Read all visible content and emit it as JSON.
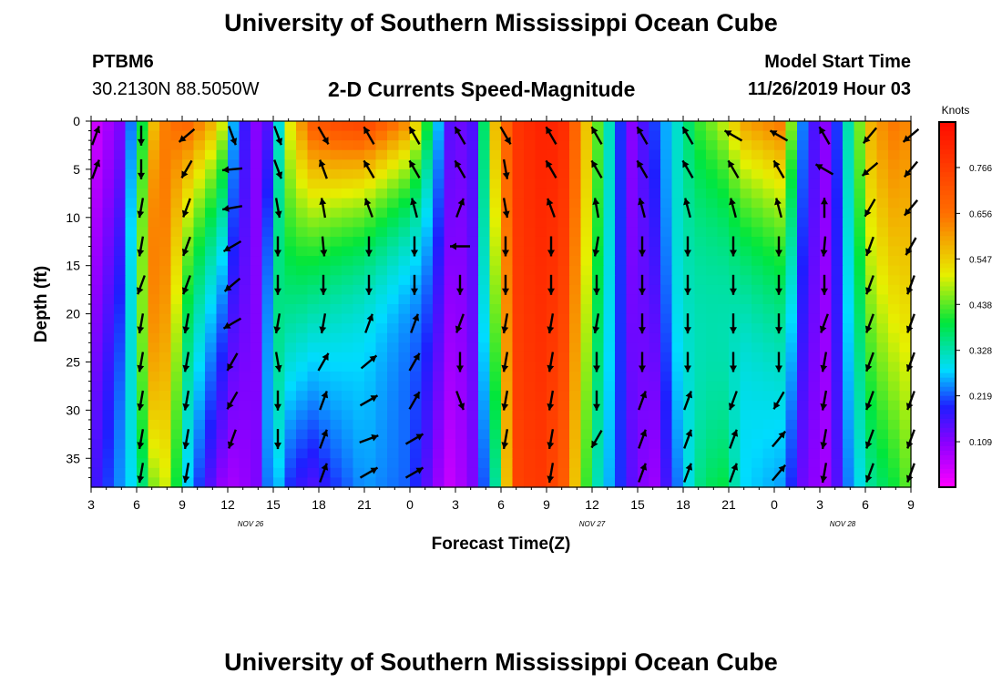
{
  "header": {
    "title_top": "University of Southern Mississippi Ocean Cube",
    "title_bottom": "University of Southern Mississippi Ocean Cube",
    "station_id": "PTBM6",
    "station_coords": "30.2130N 88.5050W",
    "plot_title": "2-D Currents Speed-Magnitude",
    "model_label": "Model Start Time",
    "model_time": "11/26/2019 Hour 03"
  },
  "chart_data": {
    "type": "heatmap",
    "title": "2-D Currents Speed-Magnitude",
    "xlabel": "Forecast Time(Z)",
    "ylabel": "Depth (ft)",
    "x_hours_range": [
      0,
      54
    ],
    "y_range": [
      0,
      38
    ],
    "y_ticks": [
      0,
      5,
      10,
      15,
      20,
      25,
      30,
      35
    ],
    "x_tick_labels": [
      "3",
      "6",
      "9",
      "12",
      "15",
      "18",
      "21",
      "0",
      "3",
      "6",
      "9",
      "12",
      "15",
      "18",
      "21",
      "0",
      "3",
      "6",
      "9"
    ],
    "date_labels": [
      {
        "text": "NOV  26",
        "hour": 10.5
      },
      {
        "text": "NOV  27",
        "hour": 33
      },
      {
        "text": "NOV  28",
        "hour": 49.5
      }
    ],
    "colorbar": {
      "title": "Knots",
      "min": 0,
      "max": 0.875,
      "ticks": [
        "0.109",
        "0.219",
        "0.328",
        "0.438",
        "0.547",
        "0.656",
        "0.766"
      ]
    },
    "profiles": {
      "x_hours": [
        0,
        2,
        3,
        4,
        5,
        6.5,
        8.5,
        9.5,
        11,
        12,
        13,
        14.5,
        16,
        18,
        21,
        23.5,
        25,
        26.5,
        28,
        29.5,
        31,
        33,
        35.5,
        37,
        38.5,
        40,
        41.5,
        43,
        45.5,
        47,
        48.5,
        50,
        51.5,
        53,
        54
      ],
      "surface_knots": [
        0.03,
        0.12,
        0.3,
        0.55,
        0.65,
        0.68,
        0.55,
        0.22,
        0.1,
        0.18,
        0.5,
        0.7,
        0.74,
        0.76,
        0.62,
        0.15,
        0.12,
        0.55,
        0.78,
        0.82,
        0.82,
        0.5,
        0.1,
        0.2,
        0.3,
        0.42,
        0.48,
        0.6,
        0.65,
        0.2,
        0.1,
        0.35,
        0.6,
        0.65,
        0.62
      ],
      "bottom_knots": [
        0.15,
        0.25,
        0.3,
        0.45,
        0.5,
        0.25,
        0.1,
        0.08,
        0.12,
        0.3,
        0.2,
        0.15,
        0.2,
        0.25,
        0.22,
        0.05,
        0.1,
        0.3,
        0.75,
        0.78,
        0.72,
        0.35,
        0.15,
        0.08,
        0.22,
        0.35,
        0.4,
        0.28,
        0.25,
        0.12,
        0.08,
        0.25,
        0.35,
        0.4,
        0.45
      ],
      "mid_scale": [
        1.0,
        1.1,
        1.2,
        1.25,
        1.05,
        0.8,
        0.75,
        1.0,
        1.0,
        1.4,
        1.0,
        0.8,
        0.7,
        0.62,
        0.6,
        1.0,
        1.0,
        1.0,
        1.0,
        1.0,
        1.0,
        1.0,
        1.0,
        1.0,
        1.1,
        0.85,
        0.75,
        0.75,
        0.8,
        1.0,
        1.0,
        1.0,
        1.0,
        1.0,
        1.0
      ]
    },
    "vector_x_hours": [
      0.3,
      3.3,
      6.3,
      9.3,
      12.3,
      15.3,
      18.3,
      21.3,
      24.3,
      27.3,
      30.3,
      33.3,
      36.3,
      39.3,
      42.3,
      45.3,
      48.3,
      51.3,
      54.0
    ],
    "vector_depths": [
      1.5,
      5,
      9,
      13,
      17,
      21,
      25,
      29,
      33,
      36.5
    ],
    "vector_directions_deg": [
      [
        20,
        180,
        230,
        160,
        160,
        150,
        330,
        330,
        330,
        150,
        330,
        330,
        330,
        330,
        300,
        300,
        330,
        220,
        230
      ],
      [
        20,
        180,
        210,
        265,
        160,
        340,
        330,
        330,
        330,
        170,
        330,
        330,
        330,
        330,
        330,
        330,
        300,
        230,
        220
      ],
      [
        null,
        190,
        200,
        260,
        170,
        350,
        340,
        345,
        20,
        170,
        340,
        350,
        345,
        345,
        345,
        345,
        360,
        210,
        220
      ],
      [
        null,
        190,
        200,
        240,
        180,
        175,
        180,
        180,
        270,
        180,
        180,
        190,
        180,
        180,
        180,
        180,
        185,
        200,
        210
      ],
      [
        null,
        200,
        200,
        230,
        180,
        180,
        180,
        180,
        180,
        180,
        180,
        180,
        180,
        180,
        180,
        180,
        180,
        200,
        200
      ],
      [
        null,
        190,
        190,
        240,
        190,
        190,
        20,
        20,
        200,
        190,
        190,
        190,
        180,
        180,
        180,
        180,
        200,
        200,
        200
      ],
      [
        null,
        190,
        190,
        210,
        170,
        30,
        50,
        30,
        180,
        190,
        190,
        180,
        180,
        180,
        180,
        180,
        190,
        200,
        200
      ],
      [
        null,
        190,
        190,
        210,
        180,
        20,
        60,
        30,
        160,
        190,
        190,
        180,
        20,
        20,
        200,
        210,
        190,
        200,
        200
      ],
      [
        null,
        190,
        190,
        200,
        180,
        20,
        70,
        60,
        null,
        190,
        190,
        210,
        20,
        20,
        20,
        40,
        190,
        200,
        200
      ],
      [
        null,
        190,
        190,
        null,
        null,
        20,
        60,
        60,
        null,
        null,
        190,
        null,
        20,
        20,
        20,
        40,
        190,
        200,
        200
      ]
    ]
  }
}
